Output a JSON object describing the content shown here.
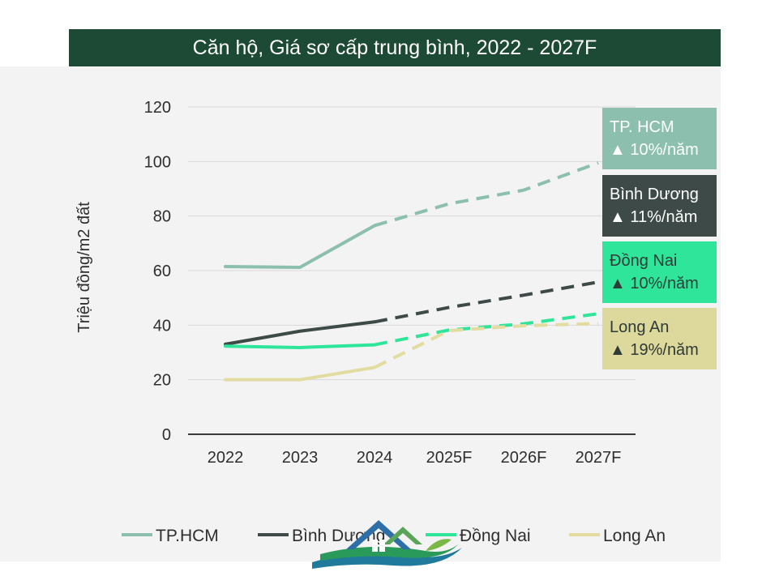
{
  "chart_data": {
    "type": "line",
    "title": "Căn hộ, Giá sơ cấp trung bình, 2022 - 2027F",
    "ylabel": "Triệu đồng/m2 đất",
    "xlabel": "",
    "categories": [
      "2022",
      "2023",
      "2024",
      "2025F",
      "2026F",
      "2027F"
    ],
    "ylim": [
      0,
      120
    ],
    "yticks": [
      0,
      20,
      40,
      60,
      80,
      100,
      120
    ],
    "grid": true,
    "legend_position": "bottom",
    "forecast_style": "dashed",
    "forecast_from_index": 2,
    "series": [
      {
        "name": "TP.HCM",
        "color": "#8cbfae",
        "values": [
          61.5,
          61.2,
          76.5,
          84.5,
          89.5,
          99.5
        ]
      },
      {
        "name": "Bình Dương",
        "color": "#3d4a47",
        "values": [
          33,
          37.8,
          41.2,
          46.5,
          51,
          55.8
        ]
      },
      {
        "name": "Đồng Nai",
        "color": "#2ee59a",
        "values": [
          32.3,
          31.8,
          32.8,
          38.2,
          40.5,
          44.2
        ]
      },
      {
        "name": "Long An",
        "color": "#e3dca0",
        "values": [
          20,
          20,
          24.5,
          38,
          39.8,
          40.6
        ]
      }
    ],
    "annotations": [
      {
        "name": "TP. HCM",
        "growth": "▲ 10%/năm",
        "bg": "#8cbfae",
        "fg": "#ffffff"
      },
      {
        "name": "Bình Dương",
        "growth": "▲ 11%/năm",
        "bg": "#3d4a47",
        "fg": "#ffffff"
      },
      {
        "name": "Đồng Nai",
        "growth": "▲ 10%/năm",
        "bg": "#2ee59a",
        "fg": "#2e3b36"
      },
      {
        "name": "Long An",
        "growth": "▲ 19%/năm",
        "bg": "#ddd89c",
        "fg": "#2e3b36"
      }
    ]
  }
}
